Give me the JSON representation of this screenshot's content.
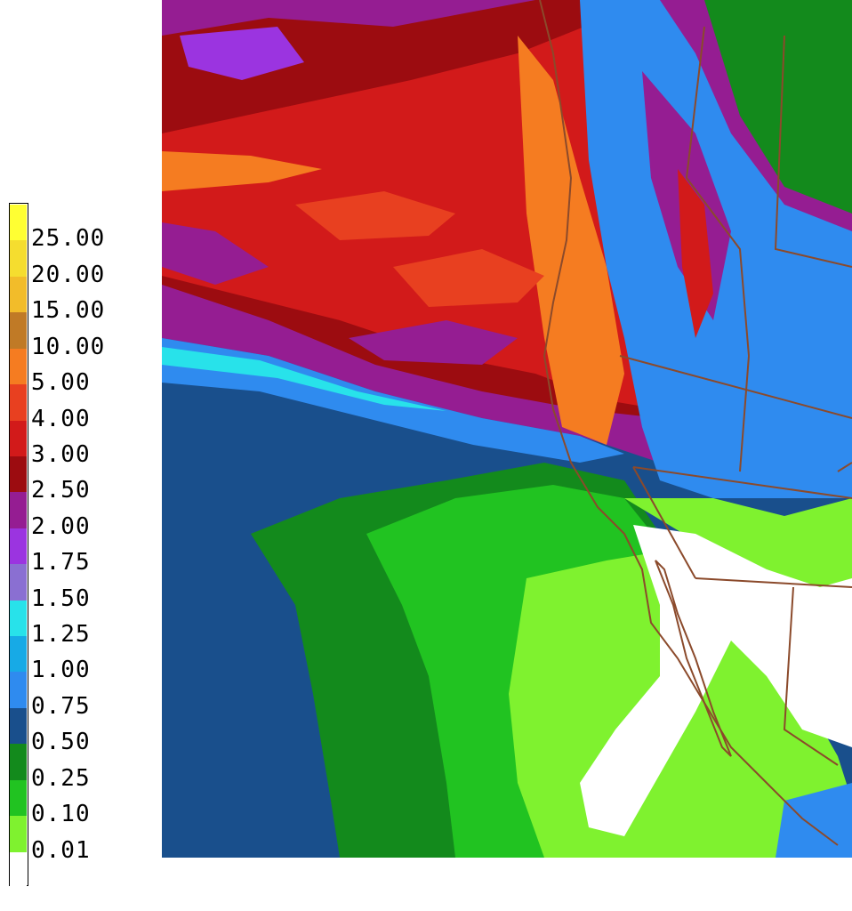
{
  "legend": {
    "bins": [
      {
        "label": "25.00",
        "color": "#ffff33"
      },
      {
        "label": "20.00",
        "color": "#f5dd2f"
      },
      {
        "label": "15.00",
        "color": "#f2bc2a"
      },
      {
        "label": "10.00",
        "color": "#c07a26"
      },
      {
        "label": "5.00",
        "color": "#f57c21"
      },
      {
        "label": "4.00",
        "color": "#e84020"
      },
      {
        "label": "3.00",
        "color": "#d21a1a"
      },
      {
        "label": "2.50",
        "color": "#9c0c10"
      },
      {
        "label": "2.00",
        "color": "#951d92"
      },
      {
        "label": "1.75",
        "color": "#9b34e0"
      },
      {
        "label": "1.50",
        "color": "#8a6fd2"
      },
      {
        "label": "1.25",
        "color": "#28e2ea"
      },
      {
        "label": "1.00",
        "color": "#17aae6"
      },
      {
        "label": "0.75",
        "color": "#2f8bef"
      },
      {
        "label": "0.50",
        "color": "#194f8c"
      },
      {
        "label": "0.25",
        "color": "#138a1c"
      },
      {
        "label": "0.10",
        "color": "#21c321"
      },
      {
        "label": "0.01",
        "color": "#7ff22f"
      },
      {
        "label": "",
        "color": "#ffffff"
      }
    ]
  },
  "map": {
    "borders_color": "#8b4a2b"
  }
}
